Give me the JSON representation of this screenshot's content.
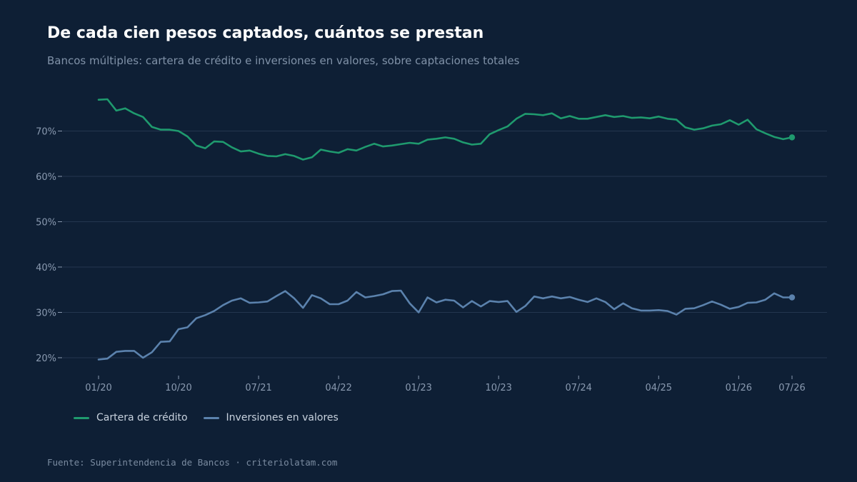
{
  "header": {
    "title": "De cada cien pesos captados, cuántos se prestan",
    "subtitle": "Bancos múltiples: cartera de crédito e inversiones en valores, sobre captaciones totales"
  },
  "footer": {
    "source": "Fuente: Superintendencia de Bancos · criteriolatam.com"
  },
  "colors": {
    "background": "#0e1f35",
    "credito": "#1f9a6e",
    "inversiones": "#5b82ad",
    "grid": "#24364f",
    "tick_text": "#8a9ab0"
  },
  "chart_data": {
    "type": "line",
    "title": "De cada cien pesos captados, cuántos se prestan",
    "subtitle": "Bancos múltiples: cartera de crédito e inversiones en valores, sobre captaciones totales",
    "x_unit": "month",
    "x_start": "2020-01",
    "x_end": "2026-07",
    "x_ticks": [
      "2020-01",
      "2020-10",
      "2021-07",
      "2022-04",
      "2023-01",
      "2023-10",
      "2024-07",
      "2025-04",
      "2026-01",
      "2026-07"
    ],
    "x_tick_labels": [
      "01/20",
      "10/20",
      "07/21",
      "04/22",
      "01/23",
      "10/23",
      "07/24",
      "04/25",
      "01/26",
      "07/26"
    ],
    "y_ticks": [
      20,
      30,
      40,
      50,
      60,
      70
    ],
    "y_tick_labels": [
      "20%",
      "30%",
      "40%",
      "50%",
      "60%",
      "70%"
    ],
    "ylim": [
      17,
      80
    ],
    "grid": "horizontal",
    "legend_position": "bottom-left",
    "series": [
      {
        "name": "Cartera de crédito",
        "color": "#1f9a6e",
        "end_marker": true,
        "values": [
          76.9,
          77.0,
          74.5,
          75.0,
          73.9,
          73.1,
          70.9,
          70.3,
          70.3,
          70.0,
          68.8,
          66.8,
          66.2,
          67.7,
          67.6,
          66.4,
          65.5,
          65.7,
          65.0,
          64.5,
          64.4,
          64.9,
          64.5,
          63.7,
          64.2,
          65.9,
          65.5,
          65.2,
          66.0,
          65.7,
          66.5,
          67.2,
          66.6,
          66.8,
          67.1,
          67.4,
          67.2,
          68.1,
          68.3,
          68.6,
          68.3,
          67.5,
          67.0,
          67.2,
          69.3,
          70.2,
          71.0,
          72.7,
          73.8,
          73.7,
          73.5,
          73.9,
          72.8,
          73.3,
          72.7,
          72.7,
          73.1,
          73.5,
          73.1,
          73.3,
          72.9,
          73.0,
          72.8,
          73.2,
          72.7,
          72.5,
          70.8,
          70.3,
          70.6,
          71.2,
          71.5,
          72.4,
          71.4,
          72.5,
          70.4,
          69.5,
          68.7,
          68.2,
          68.6
        ]
      },
      {
        "name": "Inversiones en valores",
        "color": "#5b82ad",
        "end_marker": true,
        "values": [
          19.6,
          19.8,
          21.3,
          21.5,
          21.5,
          20.0,
          21.2,
          23.5,
          23.6,
          26.3,
          26.7,
          28.7,
          29.4,
          30.3,
          31.6,
          32.6,
          33.1,
          32.1,
          32.2,
          32.4,
          33.6,
          34.7,
          33.1,
          31.0,
          33.8,
          33.1,
          31.8,
          31.8,
          32.6,
          34.5,
          33.3,
          33.6,
          34.0,
          34.7,
          34.8,
          32.0,
          30.0,
          33.3,
          32.2,
          32.8,
          32.6,
          31.1,
          32.5,
          31.3,
          32.5,
          32.3,
          32.5,
          30.1,
          31.4,
          33.5,
          33.1,
          33.5,
          33.1,
          33.4,
          32.8,
          32.3,
          33.1,
          32.3,
          30.7,
          32.0,
          30.9,
          30.4,
          30.4,
          30.5,
          30.3,
          29.5,
          30.8,
          30.9,
          31.6,
          32.4,
          31.7,
          30.8,
          31.2,
          32.1,
          32.2,
          32.8,
          34.2,
          33.3,
          33.3
        ]
      }
    ]
  }
}
